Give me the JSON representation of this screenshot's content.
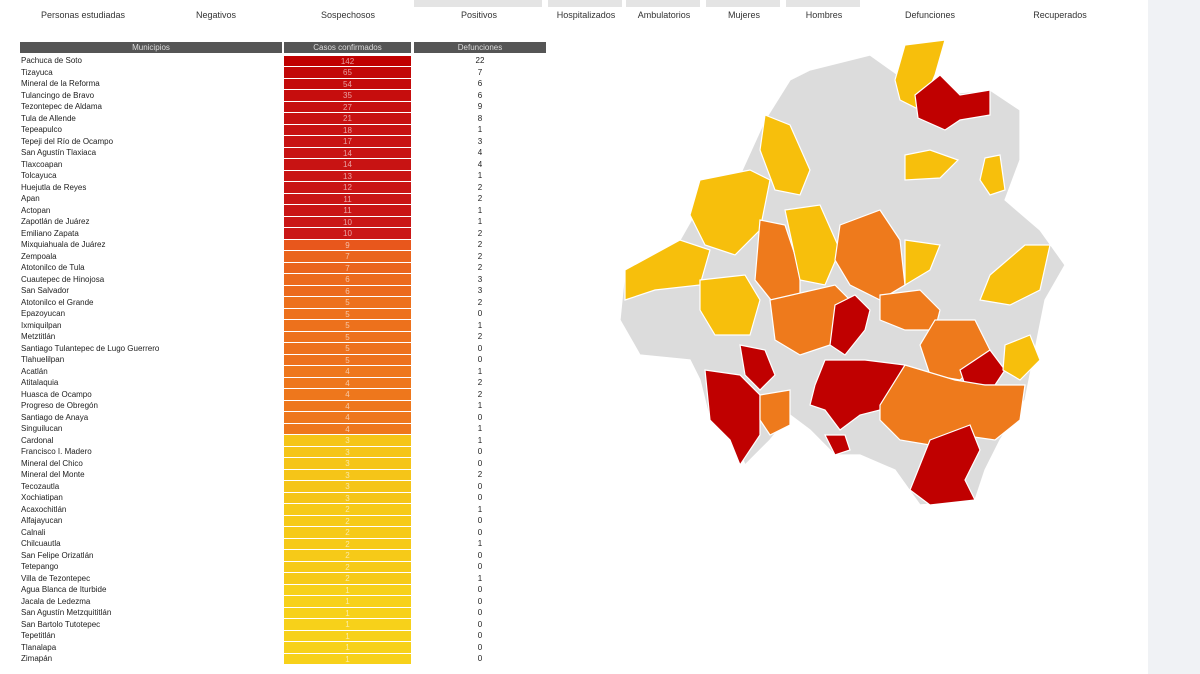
{
  "tabs": [
    "Personas estudiadas",
    "Negativos",
    "Sospechosos",
    "Positivos",
    "Hospitalizados",
    "Ambulatorios",
    "Mujeres",
    "Hombres",
    "Defunciones",
    "Recuperados"
  ],
  "table": {
    "headers": [
      "Municipios",
      "Casos confirmados",
      "Defunciones"
    ],
    "rows": [
      {
        "municipio": "Pachuca de Soto",
        "casos": 142,
        "defunciones": 22,
        "color": "#c00000"
      },
      {
        "municipio": "Tizayuca",
        "casos": 65,
        "defunciones": 7,
        "color": "#c20808"
      },
      {
        "municipio": "Mineral de la Reforma",
        "casos": 54,
        "defunciones": 6,
        "color": "#c40a0a"
      },
      {
        "municipio": "Tulancingo de Bravo",
        "casos": 35,
        "defunciones": 6,
        "color": "#c60d0d"
      },
      {
        "municipio": "Tezontepec de Aldama",
        "casos": 27,
        "defunciones": 9,
        "color": "#c60f0f"
      },
      {
        "municipio": "Tula de Allende",
        "casos": 21,
        "defunciones": 8,
        "color": "#c71111"
      },
      {
        "municipio": "Tepeapulco",
        "casos": 18,
        "defunciones": 1,
        "color": "#c71212"
      },
      {
        "municipio": "Tepeji del Río de Ocampo",
        "casos": 17,
        "defunciones": 3,
        "color": "#c81313"
      },
      {
        "municipio": "San Agustín Tlaxiaca",
        "casos": 14,
        "defunciones": 4,
        "color": "#c81313"
      },
      {
        "municipio": "Tlaxcoapan",
        "casos": 14,
        "defunciones": 4,
        "color": "#c81313"
      },
      {
        "municipio": "Tolcayuca",
        "casos": 13,
        "defunciones": 1,
        "color": "#c91414"
      },
      {
        "municipio": "Huejutla de Reyes",
        "casos": 12,
        "defunciones": 2,
        "color": "#c91414"
      },
      {
        "municipio": "Apan",
        "casos": 11,
        "defunciones": 2,
        "color": "#c91515"
      },
      {
        "municipio": "Actopan",
        "casos": 11,
        "defunciones": 1,
        "color": "#c91515"
      },
      {
        "municipio": "Zapotlán de Juárez",
        "casos": 10,
        "defunciones": 1,
        "color": "#ca1616"
      },
      {
        "municipio": "Emiliano Zapata",
        "casos": 10,
        "defunciones": 2,
        "color": "#ca1616"
      },
      {
        "municipio": "Mixquiahuala de Juárez",
        "casos": 9,
        "defunciones": 2,
        "color": "#e8571c"
      },
      {
        "municipio": "Zempoala",
        "casos": 7,
        "defunciones": 2,
        "color": "#ea641c"
      },
      {
        "municipio": "Atotonilco de Tula",
        "casos": 7,
        "defunciones": 2,
        "color": "#ea641c"
      },
      {
        "municipio": "Cuautepec de Hinojosa",
        "casos": 6,
        "defunciones": 3,
        "color": "#ec6a1c"
      },
      {
        "municipio": "San Salvador",
        "casos": 6,
        "defunciones": 3,
        "color": "#ec6a1c"
      },
      {
        "municipio": "Atotonilco el Grande",
        "casos": 5,
        "defunciones": 2,
        "color": "#ed711c"
      },
      {
        "municipio": "Epazoyucan",
        "casos": 5,
        "defunciones": 0,
        "color": "#ed711c"
      },
      {
        "municipio": "Ixmiquilpan",
        "casos": 5,
        "defunciones": 1,
        "color": "#ed711c"
      },
      {
        "municipio": "Metztitlán",
        "casos": 5,
        "defunciones": 2,
        "color": "#ed711c"
      },
      {
        "municipio": "Santiago Tulantepec de Lugo Guerrero",
        "casos": 5,
        "defunciones": 0,
        "color": "#ed711c"
      },
      {
        "municipio": "Tlahuelilpan",
        "casos": 5,
        "defunciones": 0,
        "color": "#ed711c"
      },
      {
        "municipio": "Acatlán",
        "casos": 4,
        "defunciones": 1,
        "color": "#ee771c"
      },
      {
        "municipio": "Atitalaquia",
        "casos": 4,
        "defunciones": 2,
        "color": "#ee771c"
      },
      {
        "municipio": "Huasca de Ocampo",
        "casos": 4,
        "defunciones": 2,
        "color": "#ee771c"
      },
      {
        "municipio": "Progreso de Obregón",
        "casos": 4,
        "defunciones": 1,
        "color": "#ee771c"
      },
      {
        "municipio": "Santiago de Anaya",
        "casos": 4,
        "defunciones": 0,
        "color": "#ee771c"
      },
      {
        "municipio": "Singuilucan",
        "casos": 4,
        "defunciones": 1,
        "color": "#ee771c"
      },
      {
        "municipio": "Cardonal",
        "casos": 3,
        "defunciones": 1,
        "color": "#f5c518"
      },
      {
        "municipio": "Francisco I. Madero",
        "casos": 3,
        "defunciones": 0,
        "color": "#f5c518"
      },
      {
        "municipio": "Mineral del Chico",
        "casos": 3,
        "defunciones": 0,
        "color": "#f5c518"
      },
      {
        "municipio": "Mineral del Monte",
        "casos": 3,
        "defunciones": 2,
        "color": "#f5c518"
      },
      {
        "municipio": "Tecozautla",
        "casos": 3,
        "defunciones": 0,
        "color": "#f5c518"
      },
      {
        "municipio": "Xochiatipan",
        "casos": 3,
        "defunciones": 0,
        "color": "#f5c518"
      },
      {
        "municipio": "Acaxochitlán",
        "casos": 2,
        "defunciones": 1,
        "color": "#f6ca18"
      },
      {
        "municipio": "Alfajayucan",
        "casos": 2,
        "defunciones": 0,
        "color": "#f6ca18"
      },
      {
        "municipio": "Calnali",
        "casos": 2,
        "defunciones": 0,
        "color": "#f6ca18"
      },
      {
        "municipio": "Chilcuautla",
        "casos": 2,
        "defunciones": 1,
        "color": "#f6ca18"
      },
      {
        "municipio": "San Felipe Orizatlán",
        "casos": 2,
        "defunciones": 0,
        "color": "#f6ca18"
      },
      {
        "municipio": "Tetepango",
        "casos": 2,
        "defunciones": 0,
        "color": "#f6ca18"
      },
      {
        "municipio": "Villa de Tezontepec",
        "casos": 2,
        "defunciones": 1,
        "color": "#f6ca18"
      },
      {
        "municipio": "Agua Blanca de Iturbide",
        "casos": 1,
        "defunciones": 0,
        "color": "#f7d11a"
      },
      {
        "municipio": "Jacala de Ledezma",
        "casos": 1,
        "defunciones": 0,
        "color": "#f7d11a"
      },
      {
        "municipio": "San Agustín Metzquititlán",
        "casos": 1,
        "defunciones": 0,
        "color": "#f7d11a"
      },
      {
        "municipio": "San Bartolo Tutotepec",
        "casos": 1,
        "defunciones": 0,
        "color": "#f7d11a"
      },
      {
        "municipio": "Tepetitlán",
        "casos": 1,
        "defunciones": 0,
        "color": "#f7d11a"
      },
      {
        "municipio": "Tlanalapa",
        "casos": 1,
        "defunciones": 0,
        "color": "#f7d11a"
      },
      {
        "municipio": "Zimapán",
        "casos": 1,
        "defunciones": 0,
        "color": "#f7d11a"
      }
    ]
  }
}
